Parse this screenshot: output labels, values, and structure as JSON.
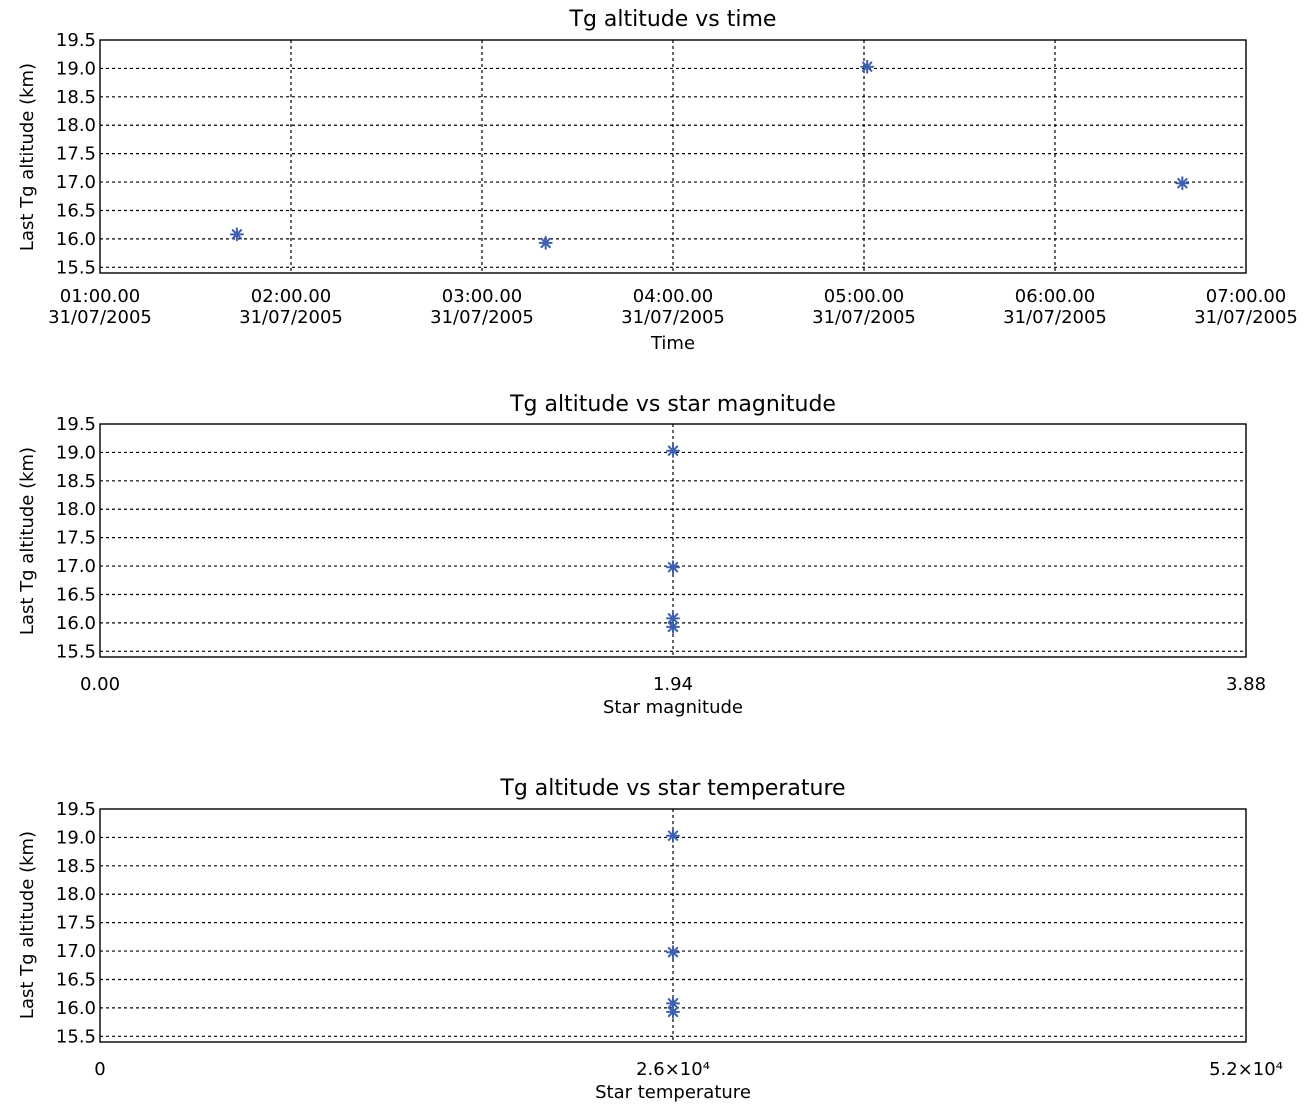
{
  "chart_data": [
    {
      "type": "scatter",
      "title": "Tg altitude vs time",
      "xlabel": "Time",
      "ylabel": "Last Tg altitude (km)",
      "xaxis": "time",
      "xlim": [
        "2005-07-31T01:00:00",
        "2005-07-31T07:00:00"
      ],
      "ylim": [
        15.4,
        19.5
      ],
      "xticks": [
        {
          "value": "2005-07-31T01:00:00",
          "label_time": "01:00.00",
          "label_date": "31/07/2005"
        },
        {
          "value": "2005-07-31T02:00:00",
          "label_time": "02:00.00",
          "label_date": "31/07/2005"
        },
        {
          "value": "2005-07-31T03:00:00",
          "label_time": "03:00.00",
          "label_date": "31/07/2005"
        },
        {
          "value": "2005-07-31T04:00:00",
          "label_time": "04:00.00",
          "label_date": "31/07/2005"
        },
        {
          "value": "2005-07-31T05:00:00",
          "label_time": "05:00.00",
          "label_date": "31/07/2005"
        },
        {
          "value": "2005-07-31T06:00:00",
          "label_time": "06:00.00",
          "label_date": "31/07/2005"
        },
        {
          "value": "2005-07-31T07:00:00",
          "label_time": "07:00.00",
          "label_date": "31/07/2005"
        }
      ],
      "yticks": [
        {
          "value": 15.5,
          "label": "15.5"
        },
        {
          "value": 16.0,
          "label": "16.0"
        },
        {
          "value": 16.5,
          "label": "16.5"
        },
        {
          "value": 17.0,
          "label": "17.0"
        },
        {
          "value": 17.5,
          "label": "17.5"
        },
        {
          "value": 18.0,
          "label": "18.0"
        },
        {
          "value": 18.5,
          "label": "18.5"
        },
        {
          "value": 19.0,
          "label": "19.0"
        },
        {
          "value": 19.5,
          "label": "19.5"
        }
      ],
      "grid": true,
      "points": [
        {
          "x": "2005-07-31T01:43:00",
          "y": 16.08
        },
        {
          "x": "2005-07-31T03:20:00",
          "y": 15.93
        },
        {
          "x": "2005-07-31T05:01:00",
          "y": 19.03
        },
        {
          "x": "2005-07-31T06:40:00",
          "y": 16.98
        }
      ]
    },
    {
      "type": "scatter",
      "title": "Tg altitude vs star magnitude",
      "xlabel": "Star magnitude",
      "ylabel": "Last Tg altitude (km)",
      "xaxis": "linear",
      "xlim": [
        0,
        3.88
      ],
      "ylim": [
        15.4,
        19.5
      ],
      "xticks": [
        {
          "value": 0,
          "label": "0.00"
        },
        {
          "value": 1.94,
          "label": "1.94"
        },
        {
          "value": 3.88,
          "label": "3.88"
        }
      ],
      "yticks": [
        {
          "value": 15.5,
          "label": "15.5"
        },
        {
          "value": 16.0,
          "label": "16.0"
        },
        {
          "value": 16.5,
          "label": "16.5"
        },
        {
          "value": 17.0,
          "label": "17.0"
        },
        {
          "value": 17.5,
          "label": "17.5"
        },
        {
          "value": 18.0,
          "label": "18.0"
        },
        {
          "value": 18.5,
          "label": "18.5"
        },
        {
          "value": 19.0,
          "label": "19.0"
        },
        {
          "value": 19.5,
          "label": "19.5"
        }
      ],
      "grid": true,
      "points": [
        {
          "x": 1.94,
          "y": 19.03
        },
        {
          "x": 1.94,
          "y": 16.98
        },
        {
          "x": 1.94,
          "y": 16.08
        },
        {
          "x": 1.94,
          "y": 15.93
        }
      ]
    },
    {
      "type": "scatter",
      "title": "Tg altitude vs star temperature",
      "xlabel": "Star temperature",
      "ylabel": "Last Tg altitude (km)",
      "xaxis": "linear",
      "xlim": [
        0,
        52000
      ],
      "ylim": [
        15.4,
        19.5
      ],
      "xticks": [
        {
          "value": 0,
          "label": "0"
        },
        {
          "value": 26000,
          "label": "2.6×10⁴"
        },
        {
          "value": 52000,
          "label": "5.2×10⁴"
        }
      ],
      "yticks": [
        {
          "value": 15.5,
          "label": "15.5"
        },
        {
          "value": 16.0,
          "label": "16.0"
        },
        {
          "value": 16.5,
          "label": "16.5"
        },
        {
          "value": 17.0,
          "label": "17.0"
        },
        {
          "value": 17.5,
          "label": "17.5"
        },
        {
          "value": 18.0,
          "label": "18.0"
        },
        {
          "value": 18.5,
          "label": "18.5"
        },
        {
          "value": 19.0,
          "label": "19.0"
        },
        {
          "value": 19.5,
          "label": "19.5"
        }
      ],
      "grid": true,
      "points": [
        {
          "x": 26000,
          "y": 19.03
        },
        {
          "x": 26000,
          "y": 16.98
        },
        {
          "x": 26000,
          "y": 16.08
        },
        {
          "x": 26000,
          "y": 15.93
        }
      ]
    }
  ],
  "colors": {
    "marker": "#3f5fb0",
    "axis": "#000000",
    "grid": "#000000",
    "background": "#ffffff"
  }
}
